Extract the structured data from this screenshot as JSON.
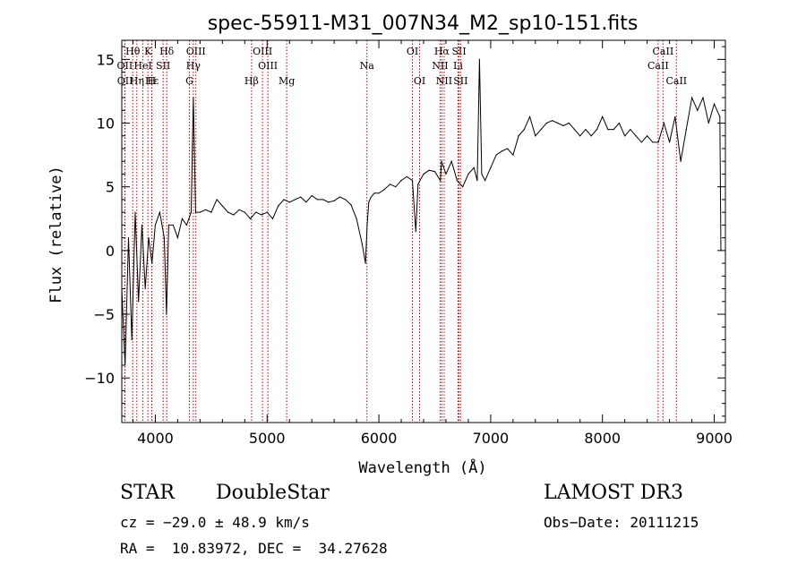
{
  "chart_data": {
    "type": "line",
    "title": "spec-55911-M31_007N34_M2_sp10-151.fits",
    "xlabel": "Wavelength (Å)",
    "ylabel": "Flux (relative)",
    "xlim": [
      3700,
      9100
    ],
    "ylim": [
      -13.5,
      16.5
    ],
    "xticks": [
      4000,
      5000,
      6000,
      7000,
      8000,
      9000
    ],
    "yticks": [
      -10,
      -5,
      0,
      5,
      10,
      15
    ],
    "series": [
      {
        "name": "flux",
        "x": [
          3700,
          3730,
          3760,
          3790,
          3820,
          3850,
          3880,
          3910,
          3940,
          3970,
          4000,
          4040,
          4080,
          4100,
          4120,
          4160,
          4200,
          4240,
          4280,
          4320,
          4340,
          4360,
          4400,
          4450,
          4500,
          4550,
          4600,
          4650,
          4700,
          4750,
          4800,
          4850,
          4900,
          4950,
          5000,
          5050,
          5100,
          5150,
          5200,
          5250,
          5300,
          5350,
          5400,
          5450,
          5500,
          5550,
          5600,
          5650,
          5700,
          5750,
          5800,
          5850,
          5880,
          5895,
          5910,
          5930,
          5960,
          6000,
          6050,
          6100,
          6150,
          6200,
          6250,
          6300,
          6330,
          6350,
          6400,
          6450,
          6500,
          6550,
          6560,
          6600,
          6650,
          6700,
          6750,
          6800,
          6850,
          6880,
          6900,
          6920,
          6950,
          7000,
          7050,
          7100,
          7150,
          7200,
          7250,
          7300,
          7350,
          7400,
          7450,
          7500,
          7550,
          7600,
          7650,
          7700,
          7750,
          7800,
          7850,
          7900,
          7950,
          8000,
          8050,
          8100,
          8150,
          8200,
          8250,
          8300,
          8350,
          8400,
          8450,
          8500,
          8550,
          8600,
          8650,
          8700,
          8750,
          8800,
          8850,
          8900,
          8950,
          9000,
          9050,
          9060
        ],
        "values": [
          -3.0,
          -9.0,
          1.0,
          -7.0,
          3.0,
          -4.0,
          2.0,
          -3.0,
          1.0,
          -1.0,
          2.0,
          3.0,
          1.0,
          -5.0,
          2.0,
          2.0,
          1.0,
          2.5,
          2.0,
          3.0,
          12.0,
          3.0,
          3.0,
          3.2,
          3.0,
          4.0,
          3.5,
          3.0,
          2.8,
          3.2,
          3.0,
          2.5,
          3.0,
          2.8,
          3.0,
          2.5,
          3.5,
          4.0,
          3.8,
          4.0,
          4.2,
          3.8,
          4.3,
          4.0,
          4.0,
          3.8,
          3.9,
          4.2,
          4.0,
          3.6,
          2.5,
          0.5,
          -1.0,
          2.0,
          3.8,
          4.2,
          4.5,
          4.5,
          4.8,
          5.2,
          5.0,
          5.5,
          5.8,
          5.5,
          1.5,
          5.2,
          6.0,
          6.3,
          6.2,
          5.5,
          7.0,
          6.0,
          7.0,
          5.5,
          5.0,
          6.0,
          6.5,
          5.5,
          15.0,
          6.0,
          5.5,
          6.5,
          7.5,
          7.8,
          8.0,
          7.5,
          9.0,
          9.5,
          10.5,
          9.0,
          9.5,
          10.0,
          10.2,
          10.0,
          9.8,
          10.0,
          9.5,
          9.0,
          9.5,
          9.0,
          9.5,
          10.5,
          9.5,
          9.5,
          10.0,
          9.0,
          9.5,
          9.0,
          8.5,
          9.0,
          8.5,
          8.5,
          10.0,
          8.5,
          10.5,
          7.0,
          9.5,
          12.0,
          11.0,
          12.0,
          10.0,
          11.5,
          10.5,
          0.0
        ]
      }
    ],
    "emission_lines": [
      {
        "name": "Hθ",
        "x": 3798,
        "row": 0
      },
      {
        "name": "K",
        "x": 3934,
        "row": 0
      },
      {
        "name": "Hδ",
        "x": 4102,
        "row": 0
      },
      {
        "name": "OIII",
        "x": 4363,
        "row": 0
      },
      {
        "name": "OIII",
        "x": 4959,
        "row": 0
      },
      {
        "name": "OI",
        "x": 6300,
        "row": 0
      },
      {
        "name": "Hα",
        "x": 6563,
        "row": 0
      },
      {
        "name": "SII",
        "x": 6717,
        "row": 0
      },
      {
        "name": "CaII",
        "x": 8542,
        "row": 0
      },
      {
        "name": "OII",
        "x": 3727,
        "row": 1
      },
      {
        "name": "HeI",
        "x": 3889,
        "row": 1
      },
      {
        "name": "SII",
        "x": 4070,
        "row": 1
      },
      {
        "name": "Hγ",
        "x": 4340,
        "row": 1
      },
      {
        "name": "OIII",
        "x": 5007,
        "row": 1
      },
      {
        "name": "Na",
        "x": 5893,
        "row": 1
      },
      {
        "name": "NII",
        "x": 6548,
        "row": 1
      },
      {
        "name": "Li",
        "x": 6708,
        "row": 1
      },
      {
        "name": "CaII",
        "x": 8498,
        "row": 1
      },
      {
        "name": "OII",
        "x": 3729,
        "row": 2
      },
      {
        "name": "Hε",
        "x": 3970,
        "row": 2
      },
      {
        "name": "Hη",
        "x": 3835,
        "row": 2
      },
      {
        "name": "H",
        "x": 3968,
        "row": 2
      },
      {
        "name": "G",
        "x": 4305,
        "row": 2
      },
      {
        "name": "Hβ",
        "x": 4861,
        "row": 2
      },
      {
        "name": "Mg",
        "x": 5175,
        "row": 2
      },
      {
        "name": "OI",
        "x": 6364,
        "row": 2
      },
      {
        "name": "NII",
        "x": 6584,
        "row": 2
      },
      {
        "name": "SII",
        "x": 6731,
        "row": 2
      },
      {
        "name": "CaII",
        "x": 8662,
        "row": 2
      }
    ]
  },
  "footer": {
    "object_class": "STAR",
    "subclass": "DoubleStar",
    "survey": "LAMOST DR3",
    "cz": "cz = −29.0 ± 48.9 km/s",
    "obs_date": "Obs−Date: 20111215",
    "coords": "RA =  10.83972, DEC =  34.27628"
  },
  "colors": {
    "axis": "#000000",
    "line_marker": "#c00000",
    "spectrum": "#000000"
  }
}
